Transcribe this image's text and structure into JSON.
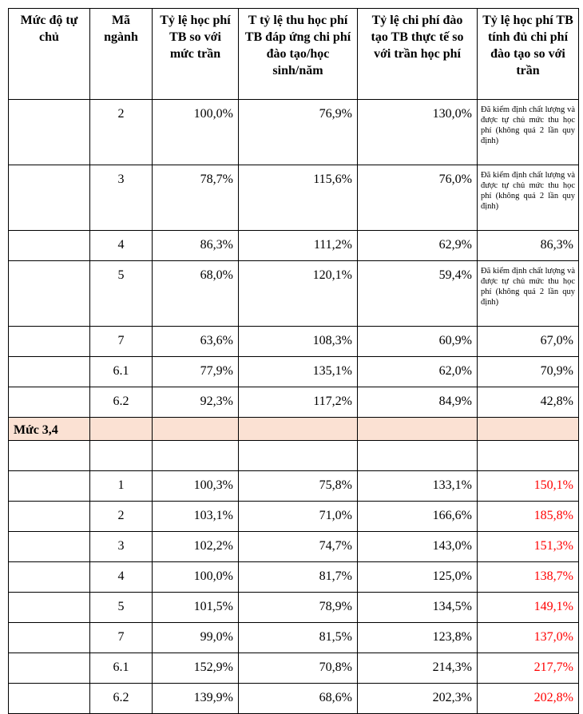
{
  "header": [
    "Mức độ tự chủ",
    "Mã ngành",
    "Tỷ lệ học phí TB so với mức trần",
    "T tỷ lệ thu học phí TB đáp ứng chi phí đào tạo/học sinh/năm",
    "Tỷ lệ chi phí đào tạo TB thực tế so với trần học phí",
    "Tỷ lệ học phí TB tính đủ chi phí đào tạo so với trần"
  ],
  "groups": [
    {
      "rows": [
        {
          "code": "2",
          "cells": [
            "100,0%",
            "76,9%",
            "130,0%",
            "Đã kiểm định chất lượng và được tự chủ mức thu học phí (không quá 2 lần quy định)"
          ]
        },
        {
          "code": "3",
          "cells": [
            "78,7%",
            "115,6%",
            "76,0%",
            "Đã kiểm định chất lượng và được tự chủ mức thu học phí (không quá 2 lần quy định)"
          ]
        },
        {
          "code": "4",
          "cells": [
            "86,3%",
            "111,2%",
            "62,9%",
            "86,3%"
          ]
        },
        {
          "code": "5",
          "cells": [
            "68,0%",
            "120,1%",
            "59,4%",
            "Đã kiểm định chất lượng và được tự chủ mức thu học phí (không quá 2 lần quy định)"
          ]
        },
        {
          "code": "7",
          "cells": [
            "63,6%",
            "108,3%",
            "60,9%",
            "67,0%"
          ]
        },
        {
          "code": "6.1",
          "cells": [
            "77,9%",
            "135,1%",
            "62,0%",
            "70,9%"
          ]
        },
        {
          "code": "6.2",
          "cells": [
            "92,3%",
            "117,2%",
            "84,9%",
            "42,8%"
          ]
        }
      ]
    },
    {
      "label": "Mức 3,4",
      "label_background": "#fbe1d3",
      "last_column_color": "#ff0000",
      "rows": [
        {},
        {
          "code": "1",
          "cells": [
            "100,3%",
            "75,8%",
            "133,1%",
            "150,1%"
          ]
        },
        {
          "code": "2",
          "cells": [
            "103,1%",
            "71,0%",
            "166,6%",
            "185,8%"
          ]
        },
        {
          "code": "3",
          "cells": [
            "102,2%",
            "74,7%",
            "143,0%",
            "151,3%"
          ]
        },
        {
          "code": "4",
          "cells": [
            "100,0%",
            "81,7%",
            "125,0%",
            "138,7%"
          ]
        },
        {
          "code": "5",
          "cells": [
            "101,5%",
            "78,9%",
            "134,5%",
            "149,1%"
          ]
        },
        {
          "code": "7",
          "cells": [
            "99,0%",
            "81,5%",
            "123,8%",
            "137,0%"
          ]
        },
        {
          "code": "6.1",
          "cells": [
            "152,9%",
            "70,8%",
            "214,3%",
            "217,7%"
          ]
        },
        {
          "code": "6.2",
          "cells": [
            "139,9%",
            "68,6%",
            "202,3%",
            "202,8%"
          ]
        }
      ]
    }
  ]
}
